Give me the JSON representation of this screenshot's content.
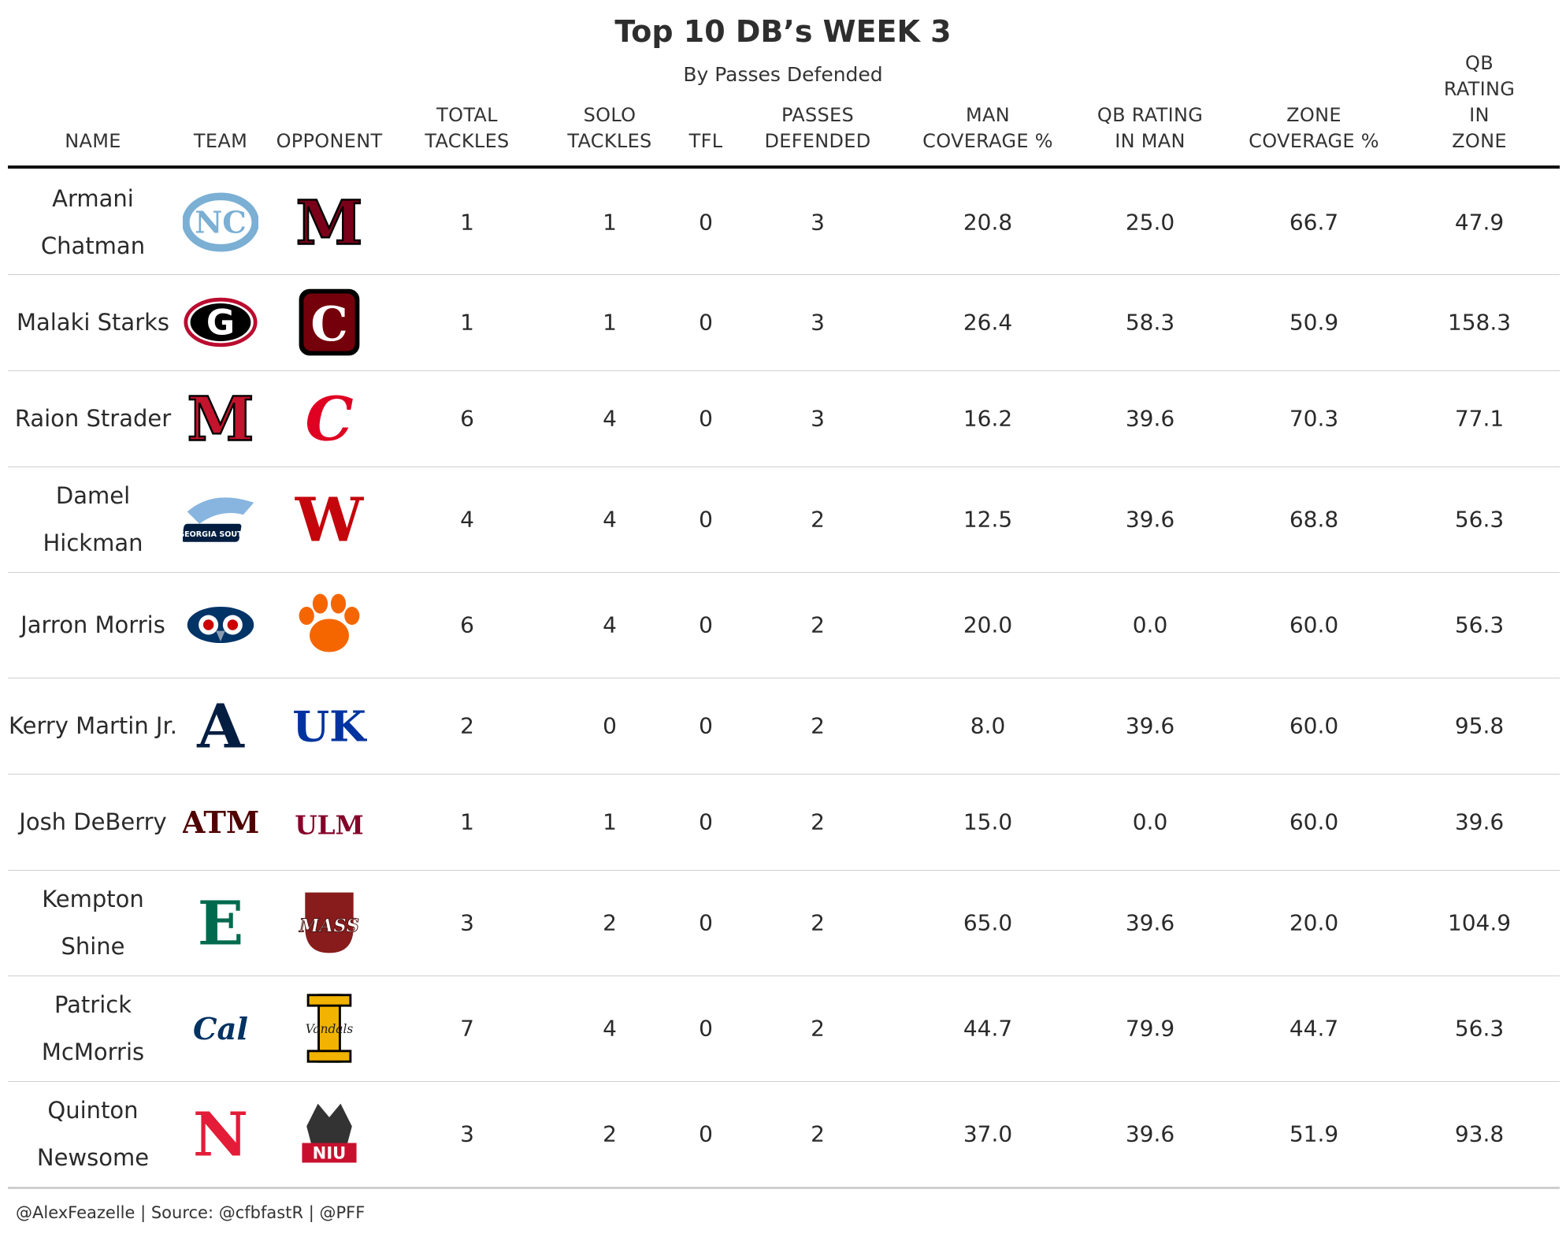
{
  "title": "Top 10 DB’s WEEK 3",
  "subtitle": "By Passes Defended",
  "footer": "@AlexFeazelle | Source: @cfbfastR | @PFF",
  "columns": [
    "NAME",
    "TEAM",
    "OPPONENT",
    "TOTAL\nTACKLES",
    "SOLO\nTACKLES",
    "TFL",
    "PASSES\nDEFENDED",
    "MAN\nCOVERAGE %",
    "QB RATING\nIN MAN",
    "ZONE\nCOVERAGE %",
    "QB RATING IN\nZONE"
  ],
  "chart_data": {
    "type": "table",
    "title": "Top 10 DB’s WEEK 3",
    "subtitle": "By Passes Defended",
    "rows": [
      {
        "name": "Armani Chatman",
        "team_logo": {
          "text": "NC",
          "color": "#7BAFD4",
          "icon": "unc-logo"
        },
        "opp_logo": {
          "text": "M",
          "color": "#7A0019",
          "icon": "minnesota-logo"
        },
        "total_tackles": "1",
        "solo_tackles": "1",
        "tfl": "0",
        "passes_defended": "3",
        "man_coverage": "20.8",
        "qb_rating_man": "25.0",
        "zone_coverage": "66.7",
        "qb_rating_zone": "47.9"
      },
      {
        "name": "Malaki Starks",
        "team_logo": {
          "text": "G",
          "color": "#BA0C2F",
          "icon": "georgia-logo"
        },
        "opp_logo": {
          "text": "C",
          "color": "#73000A",
          "icon": "south-carolina-logo"
        },
        "total_tackles": "1",
        "solo_tackles": "1",
        "tfl": "0",
        "passes_defended": "3",
        "man_coverage": "26.4",
        "qb_rating_man": "58.3",
        "zone_coverage": "50.9",
        "qb_rating_zone": "158.3"
      },
      {
        "name": "Raion Strader",
        "team_logo": {
          "text": "M",
          "color": "#C3142D",
          "icon": "miami-oh-logo"
        },
        "opp_logo": {
          "text": "C",
          "color": "#E00122",
          "icon": "cincinnati-logo"
        },
        "total_tackles": "6",
        "solo_tackles": "4",
        "tfl": "0",
        "passes_defended": "3",
        "man_coverage": "16.2",
        "qb_rating_man": "39.6",
        "zone_coverage": "70.3",
        "qb_rating_zone": "77.1"
      },
      {
        "name": "Damel Hickman",
        "team_logo": {
          "text": "GEORGIA SOUTHERN",
          "color": "#011E41",
          "icon": "georgia-southern-logo"
        },
        "opp_logo": {
          "text": "W",
          "color": "#C5050C",
          "icon": "wisconsin-logo"
        },
        "total_tackles": "4",
        "solo_tackles": "4",
        "tfl": "0",
        "passes_defended": "2",
        "man_coverage": "12.5",
        "qb_rating_man": "39.6",
        "zone_coverage": "68.8",
        "qb_rating_zone": "56.3"
      },
      {
        "name": "Jarron Morris",
        "team_logo": {
          "text": "",
          "color": "#003366",
          "icon": "fau-owl-logo"
        },
        "opp_logo": {
          "text": "",
          "color": "#F56600",
          "icon": "clemson-paw-logo"
        },
        "total_tackles": "6",
        "solo_tackles": "4",
        "tfl": "0",
        "passes_defended": "2",
        "man_coverage": "20.0",
        "qb_rating_man": "0.0",
        "zone_coverage": "60.0",
        "qb_rating_zone": "56.3"
      },
      {
        "name": "Kerry Martin Jr.",
        "team_logo": {
          "text": "A",
          "color": "#041E42",
          "icon": "akron-logo"
        },
        "opp_logo": {
          "text": "UK",
          "color": "#0033A0",
          "icon": "kentucky-logo"
        },
        "total_tackles": "2",
        "solo_tackles": "0",
        "tfl": "0",
        "passes_defended": "2",
        "man_coverage": "8.0",
        "qb_rating_man": "39.6",
        "zone_coverage": "60.0",
        "qb_rating_zone": "95.8"
      },
      {
        "name": "Josh DeBerry",
        "team_logo": {
          "text": "ATM",
          "color": "#500000",
          "icon": "texas-am-logo"
        },
        "opp_logo": {
          "text": "ULM",
          "color": "#840029",
          "icon": "ulm-logo"
        },
        "total_tackles": "1",
        "solo_tackles": "1",
        "tfl": "0",
        "passes_defended": "2",
        "man_coverage": "15.0",
        "qb_rating_man": "0.0",
        "zone_coverage": "60.0",
        "qb_rating_zone": "39.6"
      },
      {
        "name": "Kempton Shine",
        "team_logo": {
          "text": "E",
          "color": "#006A4E",
          "icon": "eastern-michigan-logo"
        },
        "opp_logo": {
          "text": "MASS",
          "color": "#881C1C",
          "icon": "umass-logo"
        },
        "total_tackles": "3",
        "solo_tackles": "2",
        "tfl": "0",
        "passes_defended": "2",
        "man_coverage": "65.0",
        "qb_rating_man": "39.6",
        "zone_coverage": "20.0",
        "qb_rating_zone": "104.9"
      },
      {
        "name": "Patrick McMorris",
        "team_logo": {
          "text": "Cal",
          "color": "#003262",
          "icon": "cal-logo"
        },
        "opp_logo": {
          "text": "Vandals",
          "color": "#F1B300",
          "icon": "idaho-logo"
        },
        "total_tackles": "7",
        "solo_tackles": "4",
        "tfl": "0",
        "passes_defended": "2",
        "man_coverage": "44.7",
        "qb_rating_man": "79.9",
        "zone_coverage": "44.7",
        "qb_rating_zone": "56.3"
      },
      {
        "name": "Quinton Newsome",
        "team_logo": {
          "text": "N",
          "color": "#E41C38",
          "icon": "nebraska-logo"
        },
        "opp_logo": {
          "text": "NIU",
          "color": "#C8102E",
          "icon": "niu-huskies-logo"
        },
        "total_tackles": "3",
        "solo_tackles": "2",
        "tfl": "0",
        "passes_defended": "2",
        "man_coverage": "37.0",
        "qb_rating_man": "39.6",
        "zone_coverage": "51.9",
        "qb_rating_zone": "93.8"
      }
    ]
  }
}
